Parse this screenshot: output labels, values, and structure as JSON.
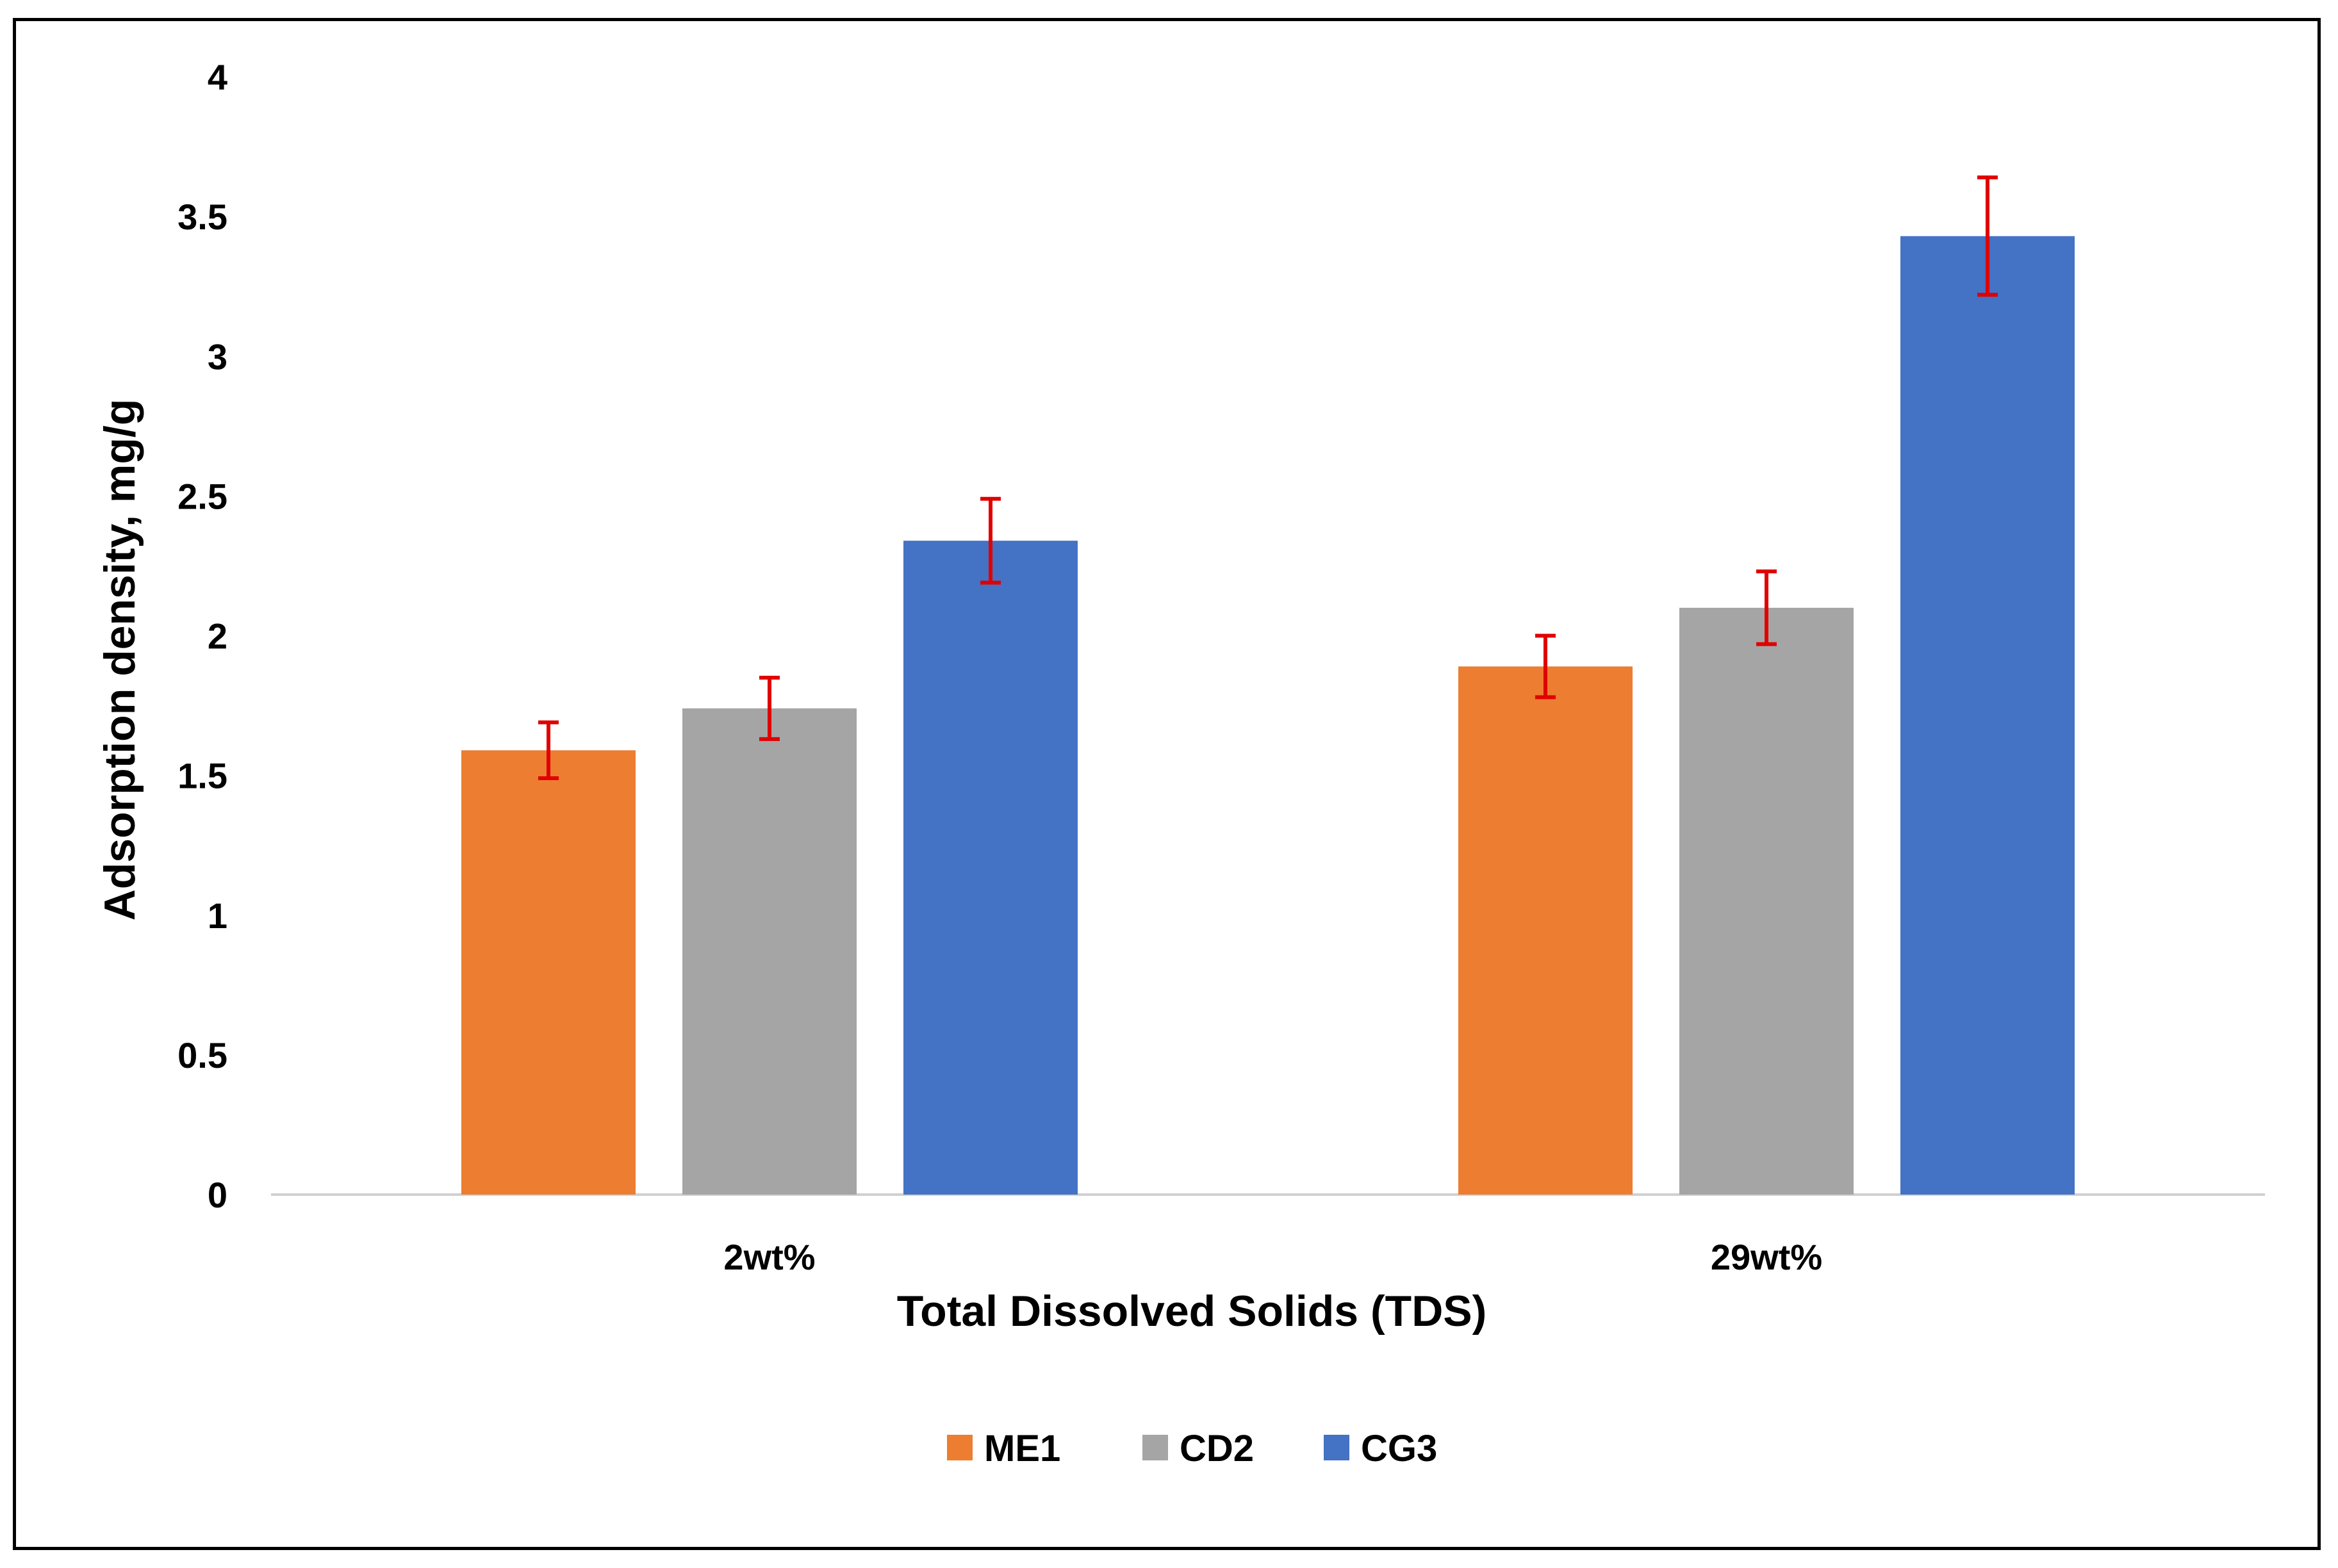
{
  "chart_data": {
    "type": "bar",
    "title": "",
    "xlabel": "Total Dissolved Solids (TDS)",
    "ylabel": "Adsorption density, mg/g",
    "ylim": [
      0,
      4
    ],
    "yticks": [
      "0",
      "0.5",
      "1",
      "1.5",
      "2",
      "2.5",
      "3",
      "3.5",
      "4"
    ],
    "grid": false,
    "legend_position": "bottom",
    "categories": [
      "2wt%",
      "29wt%"
    ],
    "series": [
      {
        "name": "ME1",
        "color": "#ED7D31",
        "values": [
          1.59,
          1.89
        ],
        "errors": [
          0.1,
          0.11
        ]
      },
      {
        "name": "CD2",
        "color": "#A5A5A5",
        "values": [
          1.74,
          2.1
        ],
        "errors": [
          0.11,
          0.13
        ]
      },
      {
        "name": "CG3",
        "color": "#4472C4",
        "values": [
          2.34,
          3.43
        ],
        "errors": [
          0.15,
          0.21
        ]
      }
    ],
    "error_bar_color": "#E00000"
  }
}
